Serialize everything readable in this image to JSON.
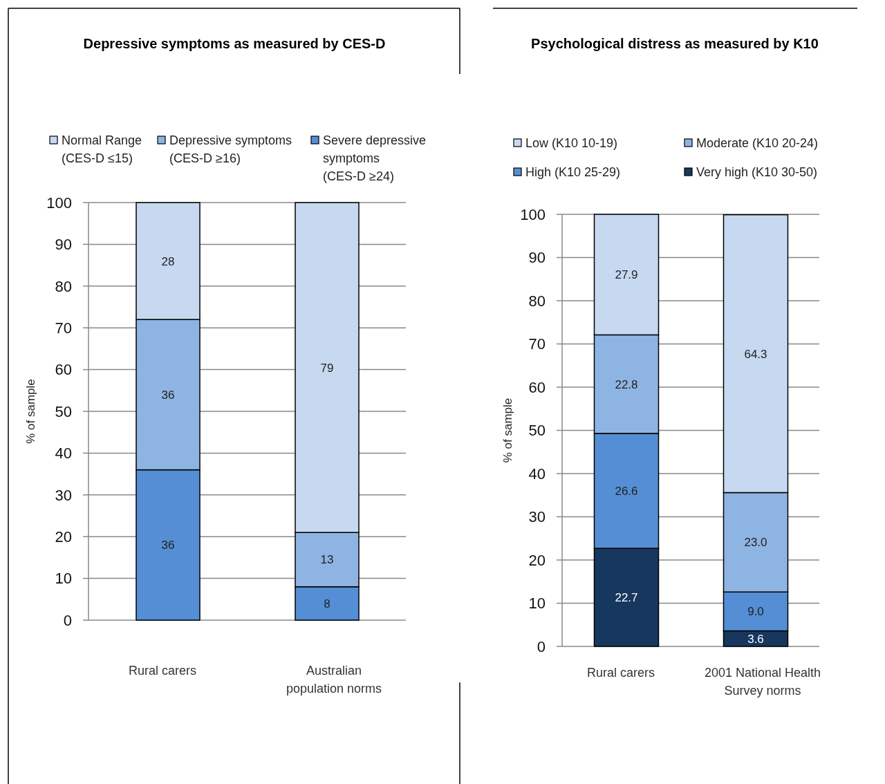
{
  "chart_data": [
    {
      "type": "bar",
      "title": "Depressive symptoms as measured by CES-D",
      "ylabel": "% of sample",
      "stacked": true,
      "categories": [
        "Rural carers",
        "Australian population norms"
      ],
      "ylim": [
        0,
        100
      ],
      "yticks": [
        0,
        10,
        20,
        30,
        40,
        50,
        60,
        70,
        80,
        90,
        100
      ],
      "grid": "y",
      "legend": "top",
      "series": [
        {
          "name": "Severe depressive symptoms (CES-D ≥24)",
          "color": "#558ed5",
          "values": [
            36,
            8
          ],
          "value_labels": [
            "36",
            "8"
          ]
        },
        {
          "name": "Depressive symptoms (CES-D ≥16)",
          "color": "#8eb4e3",
          "values": [
            36,
            13
          ],
          "value_labels": [
            "36",
            "13"
          ]
        },
        {
          "name": "Normal Range (CES-D ≤15)",
          "color": "#c6d9f1",
          "values": [
            28,
            79
          ],
          "value_labels": [
            "28",
            "79"
          ]
        }
      ]
    },
    {
      "type": "bar",
      "title": "Psychological distress as measured by K10",
      "ylabel": "% of sample",
      "stacked": true,
      "categories": [
        "Rural carers",
        "2001 National Health Survey norms"
      ],
      "ylim": [
        0,
        100
      ],
      "yticks": [
        0,
        10,
        20,
        30,
        40,
        50,
        60,
        70,
        80,
        90,
        100
      ],
      "grid": "y",
      "legend": "top",
      "series": [
        {
          "name": "Very high (K10 30-50)",
          "color": "#17375e",
          "values": [
            22.7,
            3.6
          ],
          "value_labels": [
            "22.7",
            "3.6"
          ]
        },
        {
          "name": "High (K10 25-29)",
          "color": "#558ed5",
          "values": [
            26.6,
            9.0
          ],
          "value_labels": [
            "26.6",
            "9.0"
          ]
        },
        {
          "name": "Moderate  (K10 20-24)",
          "color": "#8eb4e3",
          "values": [
            22.8,
            23.0
          ],
          "value_labels": [
            "22.8",
            "23.0"
          ]
        },
        {
          "name": "Low (K10 10-19)",
          "color": "#c6d9f1",
          "values": [
            27.9,
            64.3
          ],
          "value_labels": [
            "27.9",
            "64.3"
          ]
        }
      ]
    }
  ]
}
